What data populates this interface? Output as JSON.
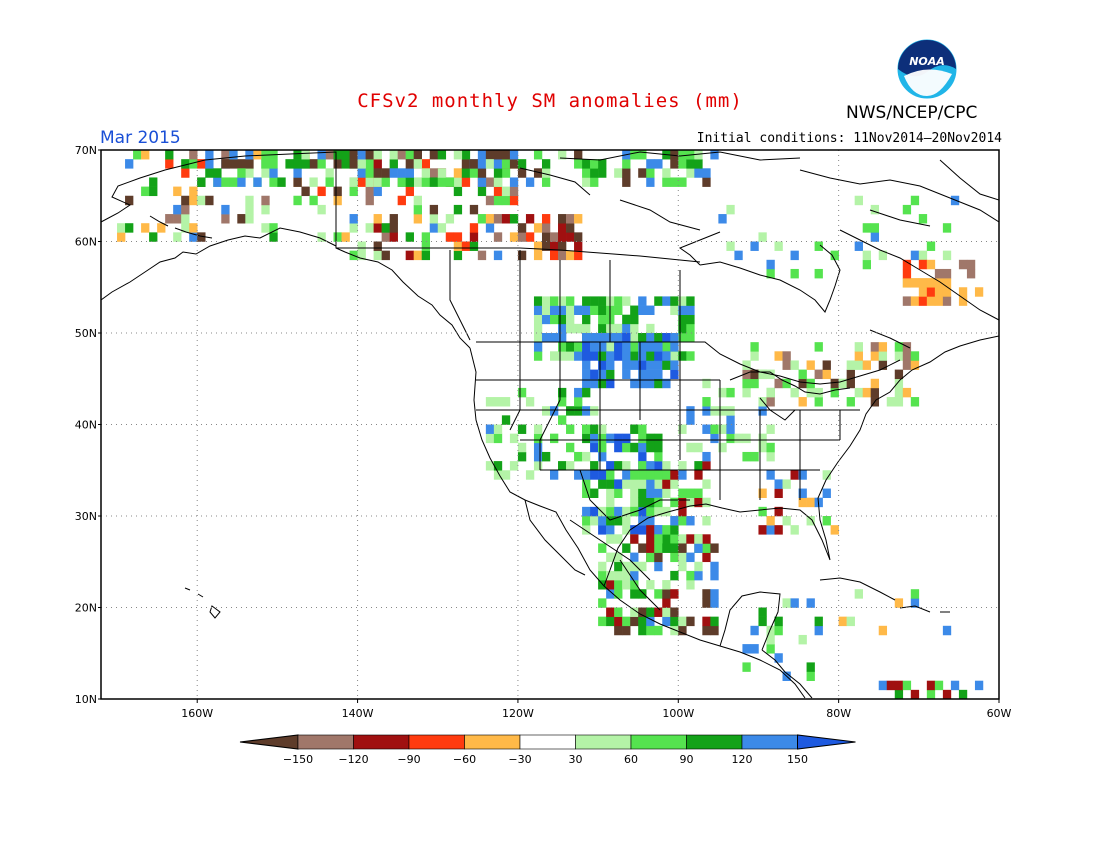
{
  "header": {
    "title": "CFSv2 monthly SM anomalies (mm)",
    "valid_month": "Mar 2015",
    "initial_conditions": "Initial conditions: 11Nov2014–20Nov2014",
    "agency": "NWS/NCEP/CPC",
    "logo_text": "NOAA"
  },
  "map": {
    "projection": "cylindrical equidistant",
    "lon_range": [
      -172,
      -60
    ],
    "lat_range": [
      10,
      70
    ],
    "gridlines": "dotted",
    "lat_labels": [
      "70N",
      "60N",
      "50N",
      "40N",
      "30N",
      "20N",
      "10N"
    ],
    "lon_labels": [
      "160W",
      "140W",
      "120W",
      "100W",
      "80W",
      "60W"
    ],
    "notable_features": {
      "wet_anomaly_regions": [
        "northern Great Plains / Dakotas",
        "Southwest US and northern Mexico",
        "Sierra Madre Occidental"
      ],
      "dry_anomaly_regions": [
        "northern British Columbia / Yukon",
        "Labrador",
        "scattered Alaska"
      ]
    }
  },
  "legend": {
    "ticks": [
      "−150",
      "−120",
      "−90",
      "−60",
      "−30",
      "30",
      "60",
      "90",
      "120",
      "150"
    ],
    "colors": [
      "#5e3c2a",
      "#a0776a",
      "#a01010",
      "#ff3b0f",
      "#ffb948",
      "#ffffff",
      "#b4f3a7",
      "#55e34f",
      "#13a218",
      "#3c8ae8",
      "#1e5ae0"
    ]
  }
}
